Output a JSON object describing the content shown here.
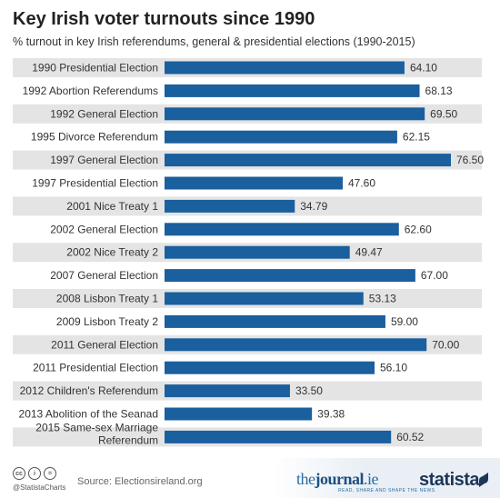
{
  "title": "Key Irish voter turnouts since 1990",
  "subtitle": "% turnout in key Irish referendums, general & presidential elections (1990-2015)",
  "chart_data": {
    "type": "bar",
    "orientation": "horizontal",
    "categories": [
      [
        "1990 Presidential Election"
      ],
      [
        "1992 Abortion Referendums"
      ],
      [
        "1992 General Election"
      ],
      [
        "1995 Divorce Referendum"
      ],
      [
        "1997 General Election"
      ],
      [
        "1997 Presidential Election"
      ],
      [
        "2001 Nice Treaty 1"
      ],
      [
        "2002 General Election"
      ],
      [
        "2002 Nice Treaty 2"
      ],
      [
        "2007 General Election"
      ],
      [
        "2008 Lisbon Treaty 1"
      ],
      [
        "2009 Lisbon Treaty 2"
      ],
      [
        "2011 General Election"
      ],
      [
        "2011 Presidential Election"
      ],
      [
        "2012 Children's Referendum"
      ],
      [
        "2013 Abolition of the Seanad"
      ],
      [
        "2015 Same-sex Marriage",
        "Referendum"
      ]
    ],
    "values": [
      64.1,
      68.13,
      69.5,
      62.15,
      76.5,
      47.6,
      34.79,
      62.6,
      49.47,
      67.0,
      53.13,
      59.0,
      70.0,
      56.1,
      33.5,
      39.38,
      60.52
    ],
    "value_labels": [
      "64.10",
      "68.13",
      "69.50",
      "62.15",
      "76.50",
      "47.60",
      "34.79",
      "62.60",
      "49.47",
      "67.00",
      "53.13",
      "59.00",
      "70.00",
      "56.10",
      "33.50",
      "39.38",
      "60.52"
    ],
    "xlim": [
      0,
      76.5
    ],
    "bar_color": "#1a5f9e",
    "row_band_color": "#e4e4e4",
    "grid": false
  },
  "footer": {
    "cc_icons": [
      "cc",
      "i",
      "="
    ],
    "handle": "@StatistaCharts",
    "source": "Source: Electionsireland.org",
    "journal_the": "the",
    "journal_name": "journal",
    "journal_tld": ".ie",
    "journal_tagline": "READ, SHARE AND SHAPE THE NEWS",
    "statista": "statista"
  }
}
